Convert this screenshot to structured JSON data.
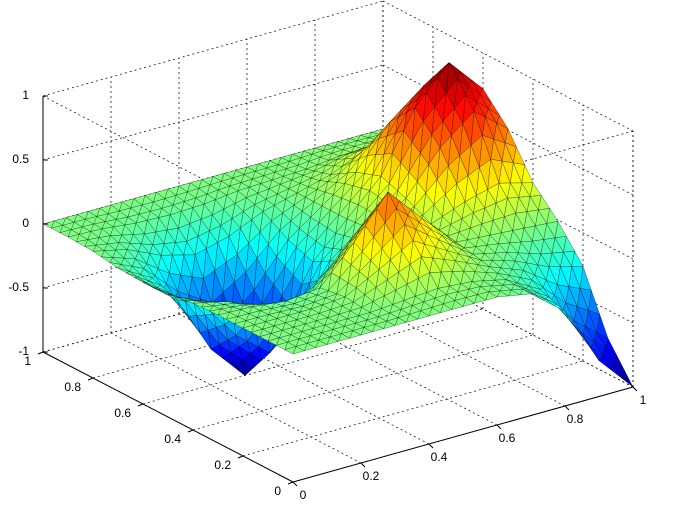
{
  "chart_data": {
    "type": "surface",
    "colormap": "jet",
    "edgecolor": "#000000",
    "grid": true,
    "x": [
      0,
      0.1,
      0.2,
      0.3,
      0.4,
      0.5,
      0.6,
      0.7,
      0.8,
      0.9,
      1
    ],
    "y": [
      0,
      0.1,
      0.2,
      0.3,
      0.4,
      0.5,
      0.6,
      0.7,
      0.8,
      0.9,
      1
    ],
    "z": [
      [
        0,
        0,
        0,
        0,
        0,
        0,
        0,
        -0.05,
        -0.26,
        -0.72,
        -1
      ],
      [
        0,
        0,
        0,
        0,
        0.02,
        0.04,
        0.02,
        -0.04,
        -0.19,
        -0.51,
        -0.72
      ],
      [
        0,
        0,
        0,
        0.02,
        0.16,
        0.31,
        0.16,
        0.01,
        -0.07,
        -0.19,
        -0.26
      ],
      [
        0,
        -0.01,
        -0.04,
        -0.01,
        0.27,
        0.59,
        0.31,
        0.05,
        0.03,
        0.01,
        -0.01
      ],
      [
        -0.01,
        -0.07,
        -0.19,
        -0.24,
        -0.03,
        0.24,
        0.16,
        0.09,
        0.19,
        0.26,
        0.19
      ],
      [
        -0.04,
        -0.19,
        -0.51,
        -0.72,
        -0.49,
        -0.15,
        0.02,
        0.19,
        0.51,
        0.72,
        0.51
      ],
      [
        -0.05,
        -0.26,
        -0.72,
        -1,
        -0.72,
        -0.26,
        0,
        0.26,
        0.72,
        1,
        0.72
      ],
      [
        -0.04,
        -0.19,
        -0.51,
        -0.72,
        -0.51,
        -0.19,
        0,
        0.19,
        0.51,
        0.72,
        0.51
      ],
      [
        -0.01,
        -0.07,
        -0.19,
        -0.26,
        -0.19,
        -0.07,
        0,
        0.07,
        0.19,
        0.26,
        0.19
      ],
      [
        0,
        -0.01,
        -0.04,
        -0.05,
        -0.04,
        -0.01,
        0,
        0.01,
        0.04,
        0.05,
        0.04
      ],
      [
        0,
        0,
        0,
        0,
        0,
        0,
        0,
        0,
        0,
        0,
        0
      ]
    ],
    "xlim": [
      0,
      1
    ],
    "ylim": [
      0,
      1
    ],
    "zlim": [
      -1,
      1
    ],
    "xticks": [
      0,
      0.2,
      0.4,
      0.6,
      0.8,
      1
    ],
    "yticks": [
      0,
      0.2,
      0.4,
      0.6,
      0.8,
      1
    ],
    "zticks": [
      -1,
      -0.5,
      0,
      0.5,
      1
    ]
  }
}
